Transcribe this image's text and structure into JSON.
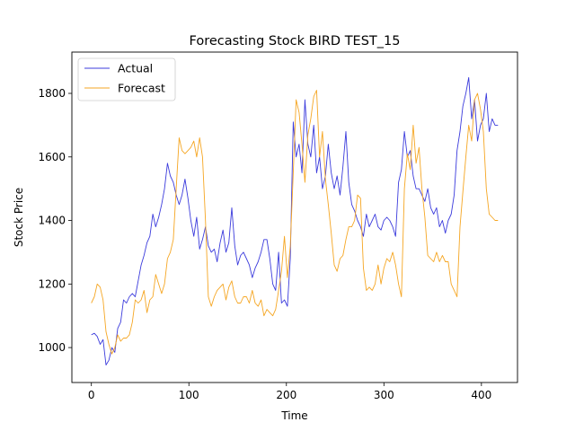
{
  "chart_data": {
    "type": "line",
    "title": "Forecasting Stock BIRD TEST_15",
    "xlabel": "Time",
    "ylabel": "Stock Price",
    "xlim": [
      -20,
      437
    ],
    "ylim": [
      890,
      1930
    ],
    "xticks": [
      0,
      100,
      200,
      300,
      400
    ],
    "yticks": [
      1000,
      1200,
      1400,
      1600,
      1800
    ],
    "grid": false,
    "legend_position": "upper-left",
    "series": [
      {
        "name": "Actual",
        "color": "#3b3bdc",
        "x": [
          0,
          3,
          6,
          9,
          12,
          15,
          18,
          21,
          24,
          27,
          30,
          33,
          36,
          39,
          42,
          45,
          48,
          51,
          54,
          57,
          60,
          63,
          66,
          69,
          72,
          75,
          78,
          81,
          84,
          87,
          90,
          93,
          96,
          99,
          102,
          105,
          108,
          111,
          114,
          117,
          120,
          123,
          126,
          129,
          132,
          135,
          138,
          141,
          144,
          147,
          150,
          153,
          156,
          159,
          162,
          165,
          168,
          171,
          174,
          177,
          180,
          183,
          186,
          189,
          192,
          195,
          198,
          201,
          204,
          207,
          210,
          213,
          216,
          219,
          222,
          225,
          228,
          231,
          234,
          237,
          240,
          243,
          246,
          249,
          252,
          255,
          258,
          261,
          264,
          267,
          270,
          273,
          276,
          279,
          282,
          285,
          288,
          291,
          294,
          297,
          300,
          303,
          306,
          309,
          312,
          315,
          318,
          321,
          324,
          327,
          330,
          333,
          336,
          339,
          342,
          345,
          348,
          351,
          354,
          357,
          360,
          363,
          366,
          369,
          372,
          375,
          378,
          381,
          384,
          387,
          390,
          393,
          396,
          399,
          402,
          405,
          408,
          411,
          414,
          417
        ],
        "values": [
          1040,
          1045,
          1035,
          1010,
          1025,
          945,
          960,
          1000,
          985,
          1060,
          1080,
          1150,
          1140,
          1160,
          1170,
          1160,
          1210,
          1260,
          1290,
          1330,
          1350,
          1420,
          1380,
          1410,
          1450,
          1500,
          1580,
          1540,
          1520,
          1480,
          1450,
          1480,
          1530,
          1470,
          1400,
          1350,
          1410,
          1310,
          1340,
          1380,
          1320,
          1300,
          1310,
          1270,
          1330,
          1370,
          1300,
          1330,
          1440,
          1320,
          1260,
          1290,
          1300,
          1280,
          1260,
          1220,
          1250,
          1270,
          1300,
          1340,
          1340,
          1280,
          1200,
          1180,
          1300,
          1140,
          1150,
          1130,
          1280,
          1710,
          1600,
          1640,
          1550,
          1780,
          1640,
          1600,
          1700,
          1550,
          1600,
          1500,
          1540,
          1640,
          1550,
          1500,
          1540,
          1480,
          1570,
          1680,
          1520,
          1450,
          1430,
          1400,
          1380,
          1350,
          1420,
          1380,
          1400,
          1420,
          1380,
          1370,
          1400,
          1410,
          1400,
          1380,
          1350,
          1520,
          1560,
          1680,
          1600,
          1620,
          1540,
          1500,
          1500,
          1480,
          1460,
          1500,
          1440,
          1420,
          1440,
          1380,
          1400,
          1360,
          1400,
          1420,
          1480,
          1620,
          1680,
          1760,
          1800,
          1850,
          1720,
          1780,
          1650,
          1700,
          1720,
          1800,
          1680,
          1720,
          1700,
          1700
        ]
      },
      {
        "name": "Forecast",
        "color": "#f5a623",
        "x": [
          0,
          3,
          6,
          9,
          12,
          15,
          18,
          21,
          24,
          27,
          30,
          33,
          36,
          39,
          42,
          45,
          48,
          51,
          54,
          57,
          60,
          63,
          66,
          69,
          72,
          75,
          78,
          81,
          84,
          87,
          90,
          93,
          96,
          99,
          102,
          105,
          108,
          111,
          114,
          117,
          120,
          123,
          126,
          129,
          132,
          135,
          138,
          141,
          144,
          147,
          150,
          153,
          156,
          159,
          162,
          165,
          168,
          171,
          174,
          177,
          180,
          183,
          186,
          189,
          192,
          195,
          198,
          201,
          204,
          207,
          210,
          213,
          216,
          219,
          222,
          225,
          228,
          231,
          234,
          237,
          240,
          243,
          246,
          249,
          252,
          255,
          258,
          261,
          264,
          267,
          270,
          273,
          276,
          279,
          282,
          285,
          288,
          291,
          294,
          297,
          300,
          303,
          306,
          309,
          312,
          315,
          318,
          321,
          324,
          327,
          330,
          333,
          336,
          339,
          342,
          345,
          348,
          351,
          354,
          357,
          360,
          363,
          366,
          369,
          372,
          375,
          378,
          381,
          384,
          387,
          390,
          393,
          396,
          399,
          402,
          405,
          408,
          411,
          414,
          417
        ],
        "values": [
          1140,
          1160,
          1200,
          1190,
          1150,
          1050,
          1010,
          980,
          1000,
          1040,
          1020,
          1030,
          1030,
          1040,
          1080,
          1150,
          1140,
          1150,
          1180,
          1110,
          1150,
          1160,
          1230,
          1200,
          1170,
          1200,
          1280,
          1300,
          1340,
          1500,
          1660,
          1620,
          1610,
          1620,
          1630,
          1650,
          1600,
          1660,
          1600,
          1400,
          1160,
          1130,
          1160,
          1180,
          1190,
          1200,
          1150,
          1190,
          1210,
          1160,
          1140,
          1140,
          1160,
          1160,
          1140,
          1180,
          1140,
          1130,
          1150,
          1100,
          1120,
          1110,
          1100,
          1120,
          1180,
          1240,
          1350,
          1220,
          1320,
          1550,
          1780,
          1740,
          1640,
          1520,
          1670,
          1720,
          1790,
          1810,
          1600,
          1680,
          1530,
          1450,
          1360,
          1260,
          1240,
          1280,
          1290,
          1340,
          1380,
          1380,
          1400,
          1480,
          1470,
          1250,
          1180,
          1190,
          1180,
          1200,
          1260,
          1200,
          1250,
          1280,
          1270,
          1300,
          1260,
          1200,
          1160,
          1500,
          1610,
          1560,
          1700,
          1580,
          1630,
          1500,
          1410,
          1290,
          1280,
          1270,
          1300,
          1270,
          1290,
          1270,
          1270,
          1200,
          1180,
          1160,
          1380,
          1490,
          1600,
          1700,
          1650,
          1780,
          1800,
          1750,
          1680,
          1500,
          1420,
          1410,
          1400,
          1400
        ]
      }
    ]
  }
}
